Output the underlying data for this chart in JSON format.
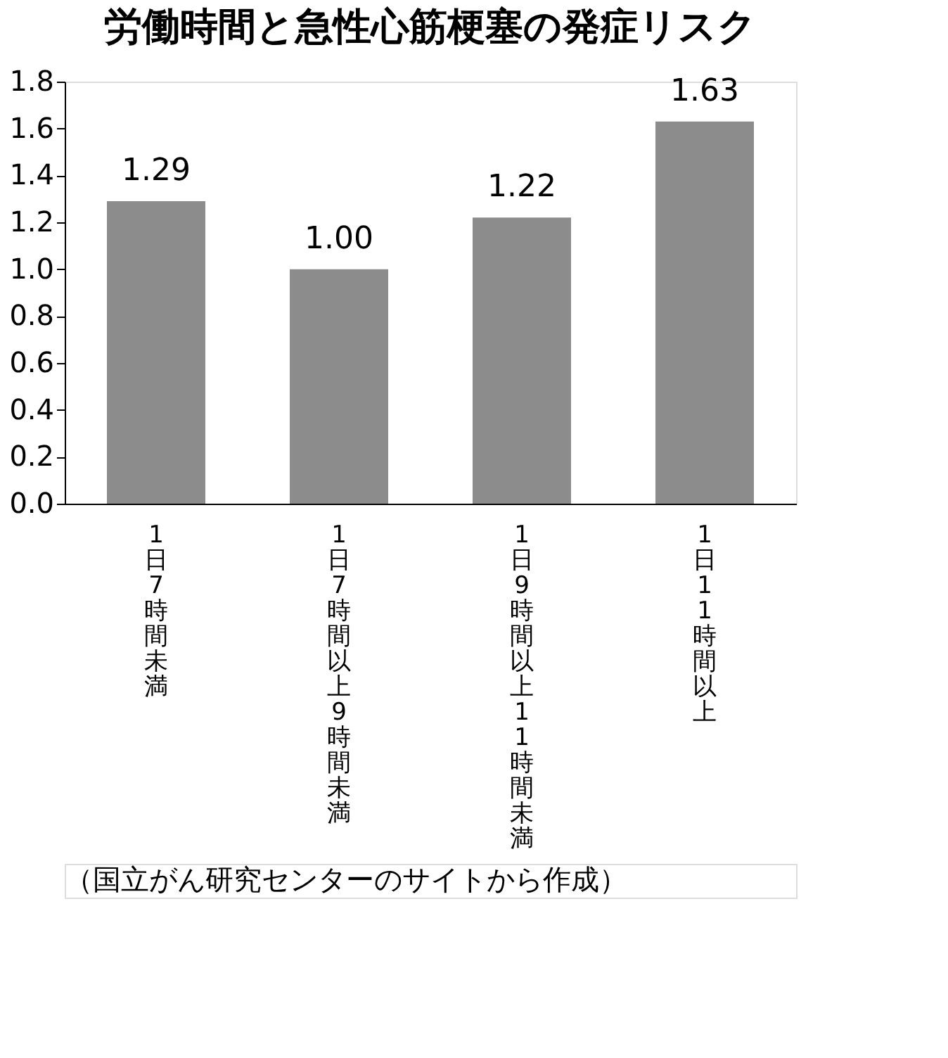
{
  "chart_data": {
    "type": "bar",
    "title": "労働時間と急性心筋梗塞の発症リスク",
    "categories": [
      "1日7時間未満",
      "1日7時間以上9時間未満",
      "1日9時間以上11時間未満",
      "1日11時間以上"
    ],
    "values": [
      1.29,
      1.0,
      1.22,
      1.63
    ],
    "value_labels": [
      "1.29",
      "1.00",
      "1.22",
      "1.63"
    ],
    "color": "#8c8c8c",
    "ylim": [
      0,
      1.8
    ],
    "yticks": [
      {
        "value": 0,
        "label": "0.0"
      },
      {
        "value": 0.2,
        "label": "0.2"
      },
      {
        "value": 0.4,
        "label": "0.4"
      },
      {
        "value": 0.6,
        "label": "0.6"
      },
      {
        "value": 0.8,
        "label": "0.8"
      },
      {
        "value": 1,
        "label": "1.0"
      },
      {
        "value": 1.2,
        "label": "1.2"
      },
      {
        "value": 1.4,
        "label": "1.4"
      },
      {
        "value": 1.6,
        "label": "1.6"
      },
      {
        "value": 1.8,
        "label": "1.8"
      }
    ],
    "grid": false,
    "annotations": [
      "（国立がん研究センターのサイトから作成）"
    ]
  }
}
